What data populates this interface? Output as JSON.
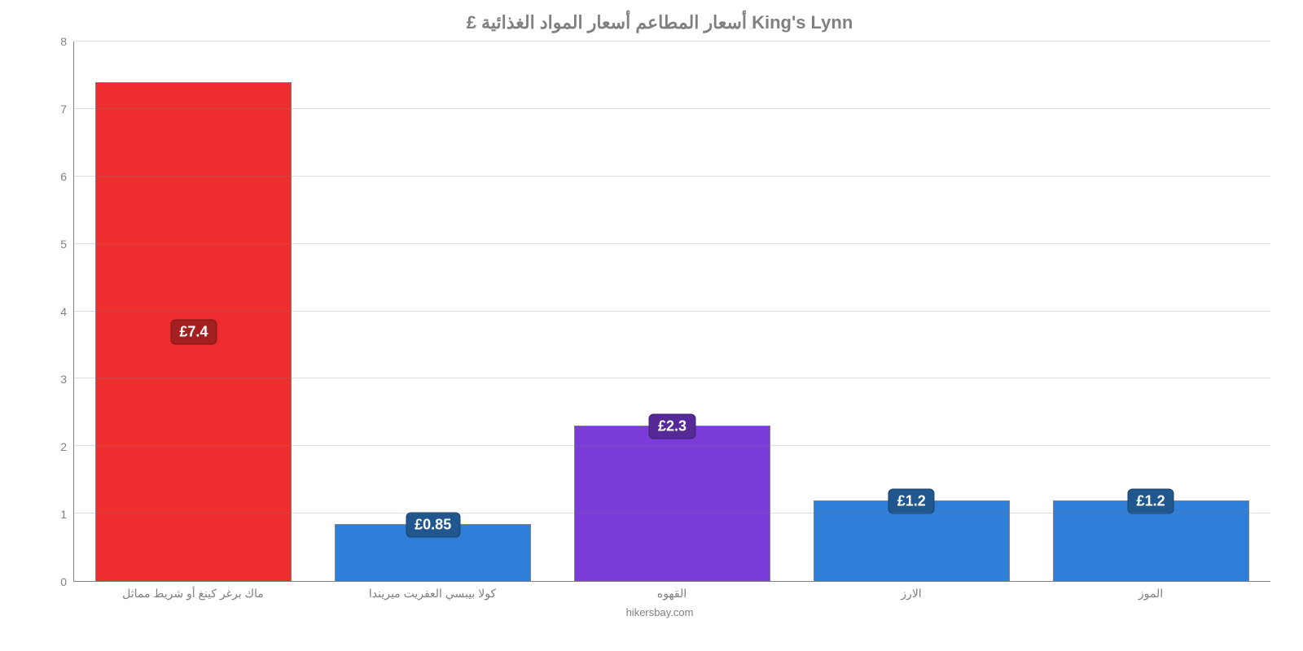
{
  "chart": {
    "type": "bar",
    "title": "£ أسعار المطاعم أسعار المواد الغذائية King's Lynn",
    "title_fontsize": 22,
    "title_color": "#808080",
    "background_color": "#ffffff",
    "axis_color": "#808080",
    "grid_color": "#808080",
    "tick_fontsize": 14,
    "tick_color": "#808080",
    "ylim": [
      0,
      8
    ],
    "yticks": [
      0,
      1,
      2,
      3,
      4,
      5,
      6,
      7,
      8
    ],
    "bar_width_ratio": 0.82,
    "bar_border_color": "#808080",
    "bar_label_fontsize": 18,
    "footer": "hikersbay.com",
    "categories": [
      "ماك برغر كينغ أو شريط مماثل",
      "كولا بيبسي العفريت ميريندا",
      "القهوه",
      "الارز",
      "الموز"
    ],
    "values": [
      7.4,
      0.85,
      2.3,
      1.2,
      1.2
    ],
    "value_labels": [
      "£7.4",
      "£0.85",
      "£2.3",
      "£1.2",
      "£1.2"
    ],
    "bar_colors": [
      "#ed2d2e",
      "#2f7ed8",
      "#7b3cd9",
      "#2f7ed8",
      "#2f7ed8"
    ],
    "label_bg_colors": [
      "#a31f20",
      "#20578f",
      "#552a97",
      "#20578f",
      "#20578f"
    ],
    "label_positions": [
      "middle",
      "top",
      "top",
      "top",
      "top"
    ]
  }
}
